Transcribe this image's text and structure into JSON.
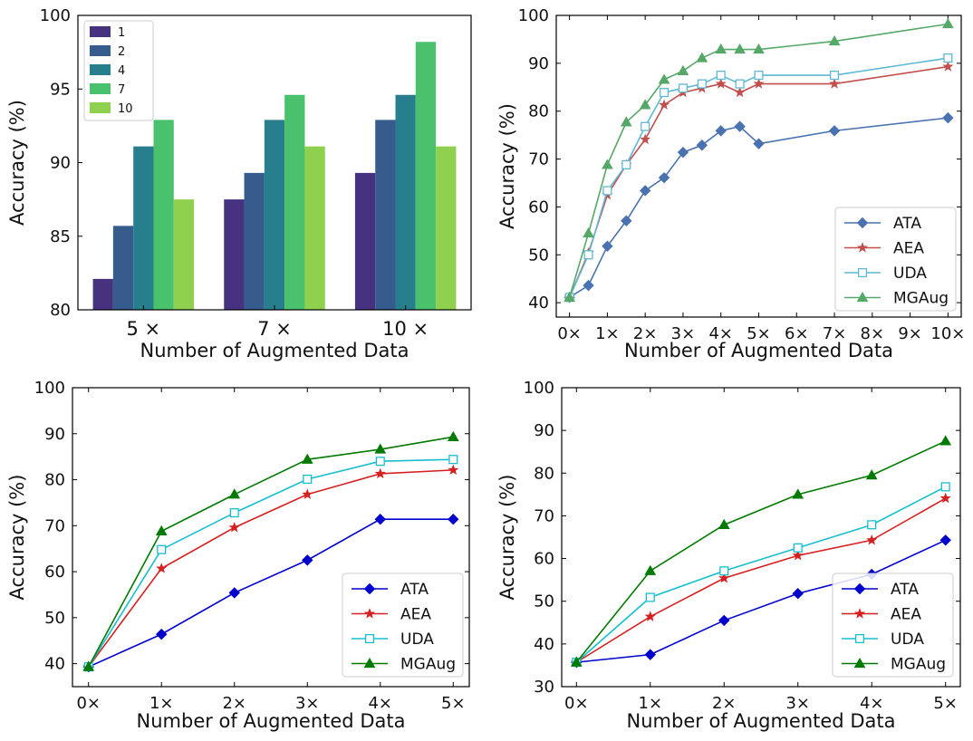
{
  "chart_data": [
    {
      "type": "bar",
      "panel": "top-left",
      "categories": [
        "5 ×",
        "7 ×",
        "10 ×"
      ],
      "series": [
        {
          "name": "1",
          "color": "#46327e",
          "values": [
            82.1,
            87.5,
            89.3
          ]
        },
        {
          "name": "2",
          "color": "#365c8d",
          "values": [
            85.7,
            89.3,
            92.9
          ]
        },
        {
          "name": "4",
          "color": "#277f8e",
          "values": [
            91.1,
            92.9,
            94.6
          ]
        },
        {
          "name": "7",
          "color": "#4ac16d",
          "values": [
            92.9,
            94.6,
            98.2
          ]
        },
        {
          "name": "10",
          "color": "#8fd14f",
          "values": [
            87.5,
            91.1,
            91.1
          ]
        }
      ],
      "xlabel": "Number of Augmented Data",
      "ylabel": "Accuracy (%)",
      "ylim": [
        80,
        100
      ],
      "yticks": [
        "80",
        "85",
        "90",
        "95",
        "100"
      ],
      "legend": "top-left"
    },
    {
      "type": "line",
      "panel": "top-right",
      "x": [
        0,
        0.5,
        1,
        1.5,
        2,
        2.5,
        3,
        3.5,
        4,
        4.5,
        5,
        7,
        10
      ],
      "xticks": [
        "0×",
        "1×",
        "2×",
        "3×",
        "4×",
        "5×",
        "6×",
        "7×",
        "8×",
        "9×",
        "10×"
      ],
      "series": [
        {
          "name": "ATA",
          "color": "#4a72b0",
          "marker": "diamond",
          "values": [
            41.1,
            43.6,
            51.8,
            57.1,
            63.4,
            66.1,
            71.4,
            72.9,
            75.9,
            76.8,
            73.2,
            75.9,
            78.6
          ]
        },
        {
          "name": "AEA",
          "color": "#c0504d",
          "marker": "star",
          "values": [
            41.1,
            50.4,
            62.5,
            68.8,
            74.1,
            81.3,
            83.9,
            84.8,
            85.7,
            83.9,
            85.7,
            85.7,
            89.3
          ]
        },
        {
          "name": "UDA",
          "color": "#5fb8d4",
          "marker": "square",
          "values": [
            41.1,
            50.0,
            63.4,
            68.8,
            76.8,
            83.9,
            84.8,
            85.7,
            87.5,
            85.7,
            87.5,
            87.5,
            91.1
          ]
        },
        {
          "name": "MGAug",
          "color": "#55a868",
          "marker": "triangle",
          "values": [
            41.1,
            54.5,
            68.8,
            77.7,
            81.3,
            86.6,
            88.4,
            91.1,
            92.9,
            92.9,
            92.9,
            94.6,
            98.2
          ]
        }
      ],
      "xlabel": "Number of Augmented Data",
      "ylabel": "Accuracy (%)",
      "xlim": [
        -0.35,
        10.35
      ],
      "ylim": [
        37,
        100
      ],
      "yticks": [
        "40",
        "50",
        "60",
        "70",
        "80",
        "90",
        "100"
      ],
      "legend": "bottom-right"
    },
    {
      "type": "line",
      "panel": "bottom-left",
      "x": [
        0,
        1,
        2,
        3,
        4,
        5
      ],
      "xticks": [
        "0×",
        "1×",
        "2×",
        "3×",
        "4×",
        "5×"
      ],
      "series": [
        {
          "name": "ATA",
          "color": "#0000cc",
          "marker": "diamond",
          "values": [
            39.3,
            46.4,
            55.4,
            62.5,
            71.4,
            71.4
          ]
        },
        {
          "name": "AEA",
          "color": "#d62020",
          "marker": "star",
          "values": [
            39.3,
            60.7,
            69.6,
            76.8,
            81.3,
            82.1
          ]
        },
        {
          "name": "UDA",
          "color": "#17becf",
          "marker": "square",
          "values": [
            39.3,
            64.8,
            72.8,
            80.1,
            84.0,
            84.4
          ]
        },
        {
          "name": "MGAug",
          "color": "#007a00",
          "marker": "triangle",
          "values": [
            39.3,
            68.8,
            76.8,
            84.4,
            86.6,
            89.3
          ]
        }
      ],
      "xlabel": "Number of Augmented Data",
      "ylabel": "Accuracy (%)",
      "xlim": [
        -0.22,
        5.22
      ],
      "ylim": [
        35,
        100
      ],
      "yticks": [
        "40",
        "50",
        "60",
        "70",
        "80",
        "90",
        "100"
      ],
      "legend": "bottom-right"
    },
    {
      "type": "line",
      "panel": "bottom-right",
      "x": [
        0,
        1,
        2,
        3,
        4,
        5
      ],
      "xticks": [
        "0×",
        "1×",
        "2×",
        "3×",
        "4×",
        "5×"
      ],
      "series": [
        {
          "name": "ATA",
          "color": "#0000cc",
          "marker": "diamond",
          "values": [
            35.7,
            37.5,
            45.5,
            51.8,
            56.3,
            64.3
          ]
        },
        {
          "name": "AEA",
          "color": "#d62020",
          "marker": "star",
          "values": [
            35.7,
            46.4,
            55.4,
            60.7,
            64.3,
            74.1
          ]
        },
        {
          "name": "UDA",
          "color": "#17becf",
          "marker": "square",
          "values": [
            35.7,
            50.9,
            57.1,
            62.5,
            67.9,
            76.8
          ]
        },
        {
          "name": "MGAug",
          "color": "#007a00",
          "marker": "triangle",
          "values": [
            35.7,
            57.1,
            67.9,
            75.0,
            79.5,
            87.5
          ]
        }
      ],
      "xlabel": "Number of Augmented Data",
      "ylabel": "Accuracy (%)",
      "xlim": [
        -0.2,
        5.2
      ],
      "ylim": [
        30,
        100
      ],
      "yticks": [
        "30",
        "40",
        "50",
        "60",
        "70",
        "80",
        "90",
        "100"
      ],
      "legend": "bottom-right"
    }
  ]
}
